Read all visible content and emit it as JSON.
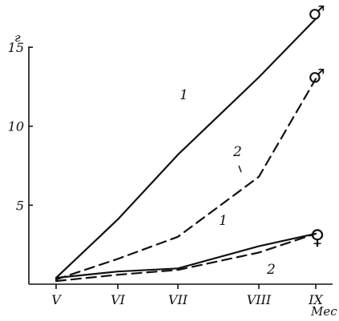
{
  "chart_data": {
    "type": "line",
    "x_unit": "г",
    "xlabel": "Мес",
    "categories": [
      "V",
      "VI",
      "VII",
      "VIII",
      "IX"
    ],
    "y_ticks": [
      5,
      10,
      15
    ],
    "ylim": [
      0,
      17
    ],
    "grid": false,
    "series": [
      {
        "label": "1",
        "group": "♂",
        "style": "solid",
        "values": [
          0.4,
          4.1,
          8.2,
          13.1,
          16.8
        ]
      },
      {
        "label": "2",
        "group": "♂",
        "style": "dashed",
        "values": [
          0.3,
          1.6,
          3.0,
          6.8,
          13.0
        ]
      },
      {
        "label": "1",
        "group": "♀",
        "style": "solid",
        "values": [
          0.4,
          0.8,
          1.0,
          2.4,
          3.2
        ]
      },
      {
        "label": "2",
        "group": "♀",
        "style": "dashed",
        "values": [
          0.2,
          0.6,
          0.9,
          2.0,
          3.2
        ]
      }
    ]
  }
}
